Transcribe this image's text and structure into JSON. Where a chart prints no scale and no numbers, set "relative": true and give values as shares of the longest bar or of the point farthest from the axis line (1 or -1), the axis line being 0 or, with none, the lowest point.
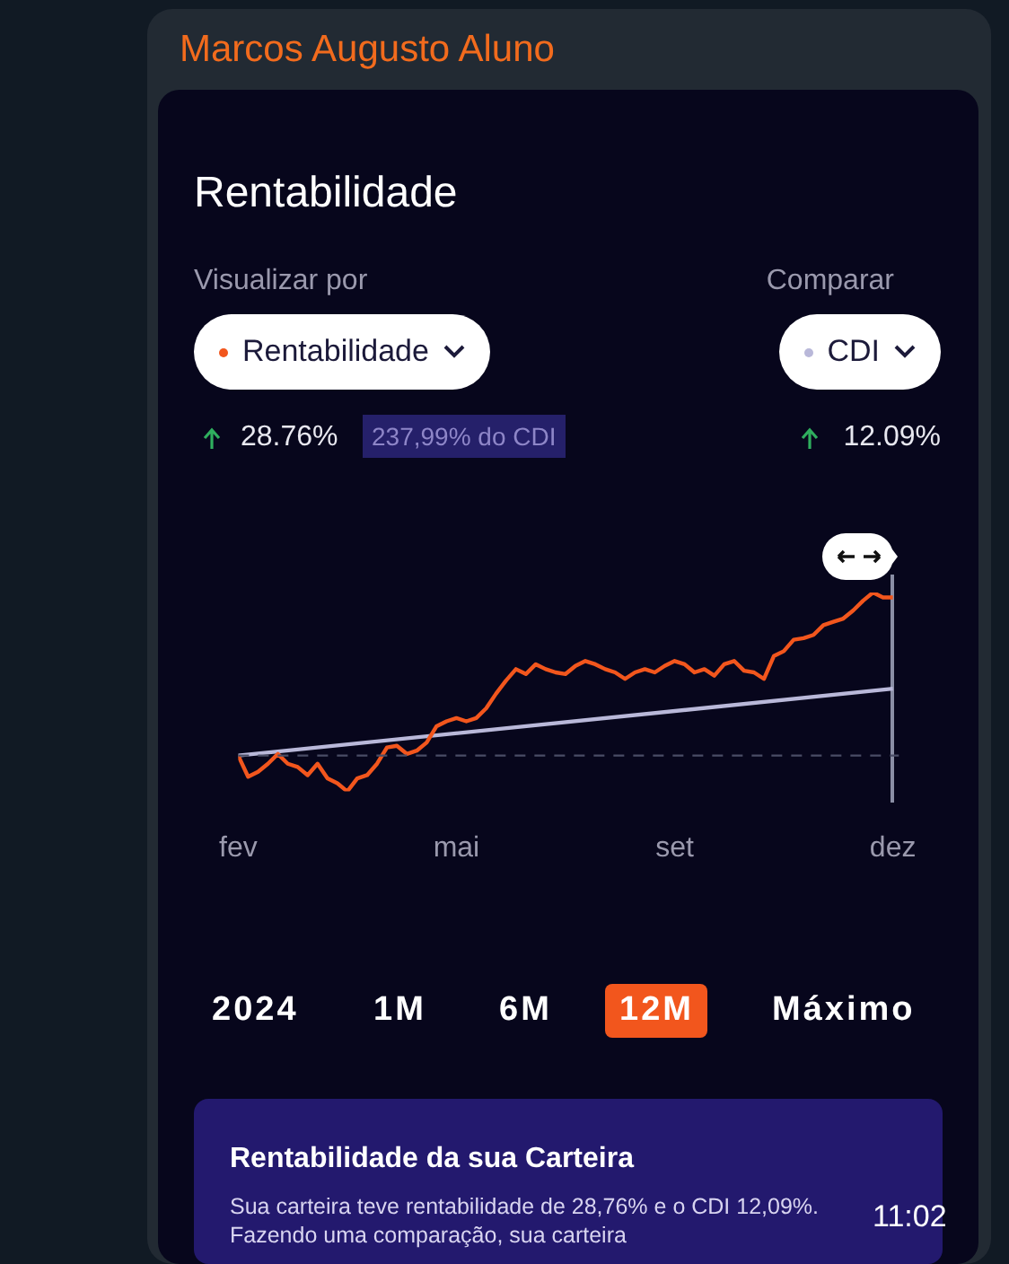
{
  "chart_data": {
    "type": "line",
    "title": "Rentabilidade",
    "categories": [
      "fev",
      null,
      null,
      null,
      null,
      null,
      null,
      null,
      null,
      null,
      null,
      null,
      null,
      null,
      null,
      null,
      null,
      null,
      null,
      null,
      null,
      null,
      "mai",
      null,
      null,
      null,
      null,
      null,
      null,
      null,
      null,
      null,
      null,
      null,
      null,
      null,
      null,
      null,
      null,
      null,
      null,
      null,
      null,
      null,
      "set",
      null,
      null,
      null,
      null,
      null,
      null,
      null,
      null,
      null,
      null,
      null,
      null,
      null,
      null,
      null,
      null,
      null,
      null,
      null,
      null,
      null,
      "dez"
    ],
    "tick_labels": "x",
    "relative": true,
    "legend": "top",
    "marker": "none",
    "line_style": "solid",
    "series": [
      {
        "name": "Rentabilidade",
        "color": "#f2561d",
        "values": [
          0,
          -0.13,
          -0.1,
          -0.05,
          0.01,
          -0.05,
          -0.07,
          -0.12,
          -0.05,
          -0.14,
          -0.17,
          -0.22,
          -0.14,
          -0.12,
          -0.05,
          0.05,
          0.06,
          0.01,
          0.03,
          0.08,
          0.18,
          0.21,
          0.23,
          0.21,
          0.23,
          0.29,
          0.38,
          0.46,
          0.53,
          0.5,
          0.56,
          0.53,
          0.51,
          0.5,
          0.55,
          0.58,
          0.56,
          0.53,
          0.51,
          0.47,
          0.51,
          0.53,
          0.51,
          0.55,
          0.58,
          0.56,
          0.51,
          0.53,
          0.49,
          0.56,
          0.58,
          0.52,
          0.51,
          0.47,
          0.61,
          0.64,
          0.71,
          0.72,
          0.74,
          0.8,
          0.82,
          0.84,
          0.89,
          0.95,
          1,
          0.97,
          0.97
        ]
      },
      {
        "name": "CDI",
        "color": "#b9b8d9",
        "x": [
          "fev",
          "dez"
        ],
        "values": [
          0,
          0.41
        ]
      }
    ],
    "ref_lines": [
      {
        "axis": "y",
        "value": 0,
        "line_style": "dashed",
        "color": "#4a4d66"
      }
    ],
    "annotations": [
      "Marcos Augusto Aluno",
      "Visualizar por",
      "Comparar",
      "28.76%",
      "237,99% do CDI",
      "12.09%",
      "2024",
      "1M",
      "6M",
      "12M",
      "Máximo",
      "Rentabilidade da sua Carteira",
      "Sua carteira teve rentabilidade de 28,76% e o CDI 12,09%. Fazendo uma comparação, sua carteira",
      "11:02"
    ]
  }
}
